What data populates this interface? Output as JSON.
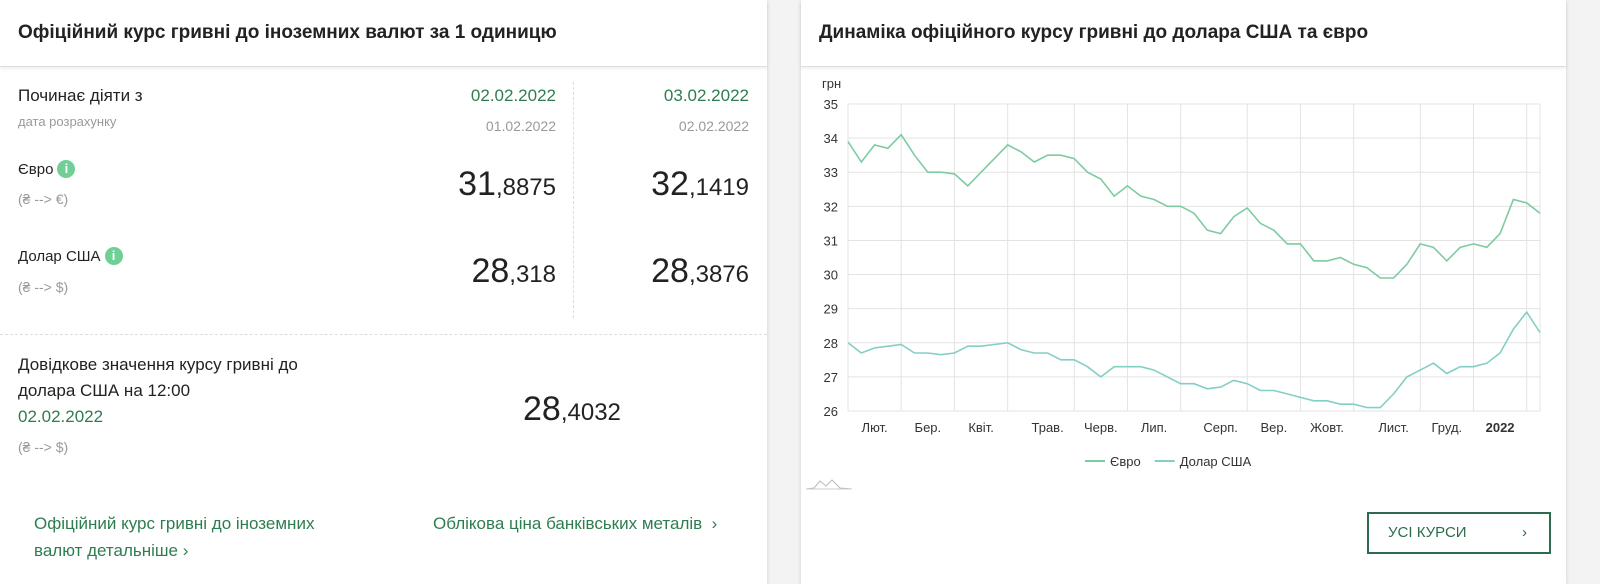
{
  "rates_panel": {
    "title": "Офіційний курс гривні до іноземних валют за 1 одиницю",
    "starts_label": "Починає діяти з",
    "calc_label": "дата розрахунку",
    "columns": [
      {
        "date": "02.02.2022",
        "calc_date": "01.02.2022"
      },
      {
        "date": "03.02.2022",
        "calc_date": "02.02.2022"
      }
    ],
    "rows": [
      {
        "name": "Євро",
        "direction": "(₴ --> €)",
        "values": [
          {
            "whole": "31",
            "fraction": ",8875"
          },
          {
            "whole": "32",
            "fraction": ",1419"
          }
        ]
      },
      {
        "name": "Долар США",
        "direction": "(₴ --> $)",
        "values": [
          {
            "whole": "28",
            "fraction": ",318"
          },
          {
            "whole": "28",
            "fraction": ",3876"
          }
        ]
      }
    ],
    "reference": {
      "text_line1": "Довідкове значення курсу гривні до",
      "text_line2": "долара США на 12:00",
      "date": "02.02.2022",
      "direction": "(₴ --> $)",
      "value": {
        "whole": "28",
        "fraction": ",4032"
      }
    },
    "links": [
      {
        "line1": "Офіційний курс гривні до іноземних",
        "line2": "валют детальніше"
      },
      {
        "line1": "Облікова ціна банківських металів"
      }
    ]
  },
  "chart_panel": {
    "title": "Динаміка офіційного курсу гривні до долара США та євро",
    "button": "УСІ КУРСИ"
  },
  "chart_data": {
    "type": "line",
    "y_unit": "грн",
    "categories": [
      null,
      null,
      "Лют.",
      null,
      null,
      null,
      "Бер.",
      null,
      null,
      null,
      "Квіт.",
      null,
      null,
      null,
      null,
      "Трав.",
      null,
      null,
      null,
      "Черв.",
      null,
      null,
      null,
      "Лип.",
      null,
      null,
      null,
      null,
      "Серп.",
      null,
      null,
      null,
      "Вер.",
      null,
      null,
      null,
      "Жовт.",
      null,
      null,
      null,
      null,
      "Лист.",
      null,
      null,
      null,
      "Груд.",
      null,
      null,
      null,
      "2022",
      null,
      null,
      null
    ],
    "series": [
      {
        "name": "Євро",
        "color": "#7ecba1",
        "values": [
          33.9,
          33.3,
          33.8,
          33.7,
          34.1,
          33.5,
          33.0,
          33.0,
          32.95,
          32.6,
          33.0,
          33.4,
          33.8,
          33.6,
          33.3,
          33.5,
          33.5,
          33.4,
          33.0,
          32.8,
          32.3,
          32.6,
          32.3,
          32.2,
          32.0,
          32.0,
          31.8,
          31.3,
          31.2,
          31.7,
          31.95,
          31.5,
          31.3,
          30.9,
          30.9,
          30.4,
          30.4,
          30.5,
          30.3,
          30.2,
          29.9,
          29.9,
          30.3,
          30.9,
          30.8,
          30.4,
          30.8,
          30.9,
          30.8,
          31.2,
          32.2,
          32.1,
          31.8
        ]
      },
      {
        "name": "Долар США",
        "color": "#84cfc4",
        "values": [
          28.0,
          27.7,
          27.85,
          27.9,
          27.95,
          27.7,
          27.7,
          27.65,
          27.7,
          27.9,
          27.9,
          27.95,
          28.0,
          27.8,
          27.7,
          27.7,
          27.5,
          27.5,
          27.3,
          27.0,
          27.3,
          27.3,
          27.3,
          27.2,
          27.0,
          26.8,
          26.8,
          26.65,
          26.7,
          26.9,
          26.8,
          26.6,
          26.6,
          26.5,
          26.4,
          26.3,
          26.3,
          26.2,
          26.2,
          26.1,
          26.1,
          26.5,
          27.0,
          27.2,
          27.4,
          27.1,
          27.3,
          27.3,
          27.4,
          27.7,
          28.4,
          28.9,
          28.3
        ]
      }
    ],
    "ylim": [
      26,
      35
    ],
    "yticks": [
      26,
      27,
      28,
      29,
      30,
      31,
      32,
      33,
      34,
      35
    ],
    "grid": true,
    "legend": "bottom"
  }
}
